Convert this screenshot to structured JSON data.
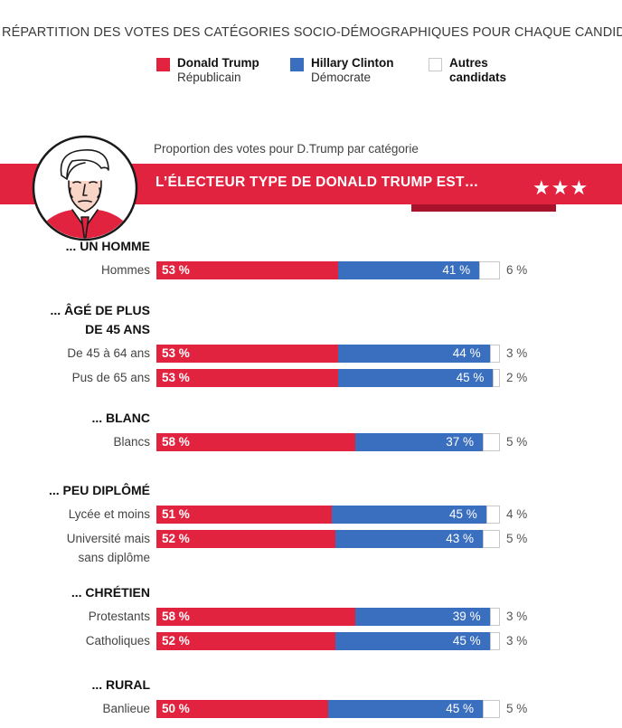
{
  "header": {
    "title": "RÉPARTITION DES VOTES DES CATÉGORIES SOCIO-DÉMOGRAPHIQUES POUR CHAQUE CANDIDAT",
    "legend": [
      {
        "name": "Donald Trump",
        "sub": "Républicain",
        "color": "#e2233f"
      },
      {
        "name": "Hillary Clinton",
        "sub": "Démocrate",
        "color": "#3a6fbf"
      },
      {
        "name": "Autres",
        "sub": "candidats",
        "color": "#ffffff"
      }
    ]
  },
  "subheading": "Proportion des votes pour D.Trump par catégorie",
  "banner": {
    "text": "L’ÉLECTEUR TYPE DE DONALD TRUMP EST…",
    "stars": "★★★"
  },
  "chart_data": {
    "type": "bar",
    "orientation": "horizontal",
    "stacked": true,
    "title": "RÉPARTITION DES VOTES DES CATÉGORIES SOCIO-DÉMOGRAPHIQUES POUR CHAQUE CANDIDAT",
    "xlim": [
      0,
      100
    ],
    "unit": "%",
    "series": [
      {
        "name": "Donald Trump",
        "color": "#e2233f"
      },
      {
        "name": "Hillary Clinton",
        "color": "#3a6fbf"
      },
      {
        "name": "Autres candidats",
        "color": "#ffffff"
      }
    ],
    "sections": [
      {
        "title": "... UN HOMME",
        "rows": [
          {
            "label": "Hommes",
            "values": [
              53,
              41,
              6
            ]
          }
        ]
      },
      {
        "title": "... ÂGÉ DE PLUS\nDE 45 ANS",
        "rows": [
          {
            "label": "De 45 à 64 ans",
            "values": [
              53,
              44,
              3
            ]
          },
          {
            "label": "Pus de 65 ans",
            "values": [
              53,
              45,
              2
            ]
          }
        ]
      },
      {
        "title": "... BLANC",
        "rows": [
          {
            "label": "Blancs",
            "values": [
              58,
              37,
              5
            ]
          }
        ]
      },
      {
        "title": "... PEU DIPLÔMÉ",
        "rows": [
          {
            "label": "Lycée et moins",
            "values": [
              51,
              45,
              4
            ]
          },
          {
            "label": "Université mais\nsans diplôme",
            "values": [
              52,
              43,
              5
            ]
          }
        ]
      },
      {
        "title": "... CHRÉTIEN",
        "rows": [
          {
            "label": "Protestants",
            "values": [
              58,
              39,
              3
            ]
          },
          {
            "label": "Catholiques",
            "values": [
              52,
              45,
              3
            ]
          }
        ]
      },
      {
        "title": "... RURAL",
        "rows": [
          {
            "label": "Banlieue",
            "values": [
              50,
              45,
              5
            ]
          }
        ]
      }
    ]
  }
}
